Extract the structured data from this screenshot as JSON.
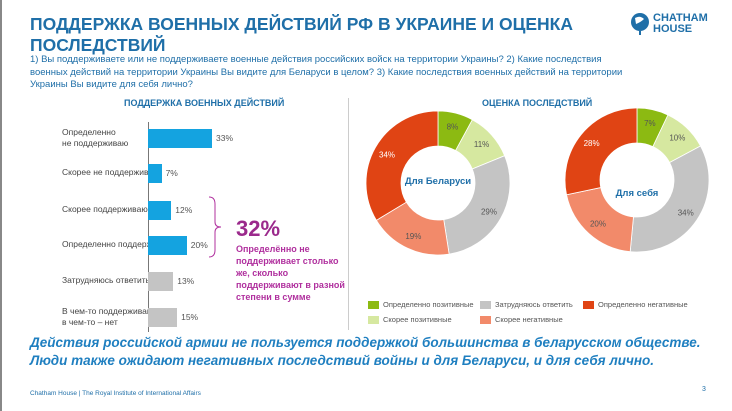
{
  "header": {
    "title": "ПОДДЕРЖКА ВОЕННЫХ ДЕЙСТВИЙ РФ В УКРАИНЕ И ОЦЕНКА ПОСЛЕДСТВИЙ",
    "subtitle": "1) Вы поддерживаете или не поддерживаете военные действия российских войск на территории Украины? 2) Какие последствия военных действий на территории Украины Вы видите для Беларуси в целом? 3) Какие последствия военных действий на территории Украины Вы видите для себя лично?",
    "logo_line1": "CHATHAM",
    "logo_line2": "HOUSE"
  },
  "chart_data": [
    {
      "type": "bar",
      "title": "ПОДДЕРЖКА ВОЕННЫХ ДЕЙСТВИЙ",
      "categories": [
        "Определенно\nне поддерживаю",
        "Скорее не поддерживаю",
        "Скорее поддерживаю",
        "Определенно поддерживаю",
        "Затрудняюсь ответить",
        "В чем-то поддерживаю,\nв чем-то – нет"
      ],
      "values": [
        33,
        7,
        12,
        20,
        13,
        15
      ],
      "value_labels": [
        "33%",
        "7%",
        "12%",
        "20%",
        "13%",
        "15%"
      ],
      "colors": [
        "#14a3e0",
        "#14a3e0",
        "#14a3e0",
        "#14a3e0",
        "#c4c4c4",
        "#c4c4c4"
      ],
      "annotation": {
        "value": "32%",
        "text": "Определённо не поддерживает столько же, сколько поддерживают в разной степени в сумме"
      }
    },
    {
      "type": "pie",
      "title": "ОЦЕНКА ПОСЛЕДСТВИЙ",
      "center_label": "Для Беларуси",
      "categories": [
        "Определенно позитивные",
        "Скорее позитивные",
        "Затрудняюсь ответить",
        "Скорее негативные",
        "Определенно негативные"
      ],
      "values": [
        8,
        11,
        29,
        19,
        34
      ],
      "value_labels": [
        "8%",
        "11%",
        "29%",
        "19%",
        "34%"
      ]
    },
    {
      "type": "pie",
      "center_label": "Для себя",
      "categories": [
        "Определенно позитивные",
        "Скорее позитивные",
        "Затрудняюсь ответить",
        "Скорее негативные",
        "Определенно негативные"
      ],
      "values": [
        7,
        10,
        34,
        20,
        28
      ],
      "value_labels": [
        "7%",
        "10%",
        "34%",
        "20%",
        "28%"
      ]
    }
  ],
  "legend": [
    {
      "label": "Определенно позитивные",
      "color": "#8cba12"
    },
    {
      "label": "Затрудняюсь ответить",
      "color": "#c4c4c4"
    },
    {
      "label": "Определенно негативные",
      "color": "#e04414"
    },
    {
      "label": "Скорее позитивные",
      "color": "#d6e8a0"
    },
    {
      "label": "Скорее негативные",
      "color": "#f28a6a"
    }
  ],
  "conclusion": {
    "line1": "Действия российской армии не пользуется поддержкой большинства в беларусском обществе.",
    "line2": "Люди также ожидают негативных последствий войны и для Беларуси, и для себя лично."
  },
  "footer": {
    "text": "Chatham House  |  The Royal Institute of International Affairs",
    "page": "3"
  }
}
